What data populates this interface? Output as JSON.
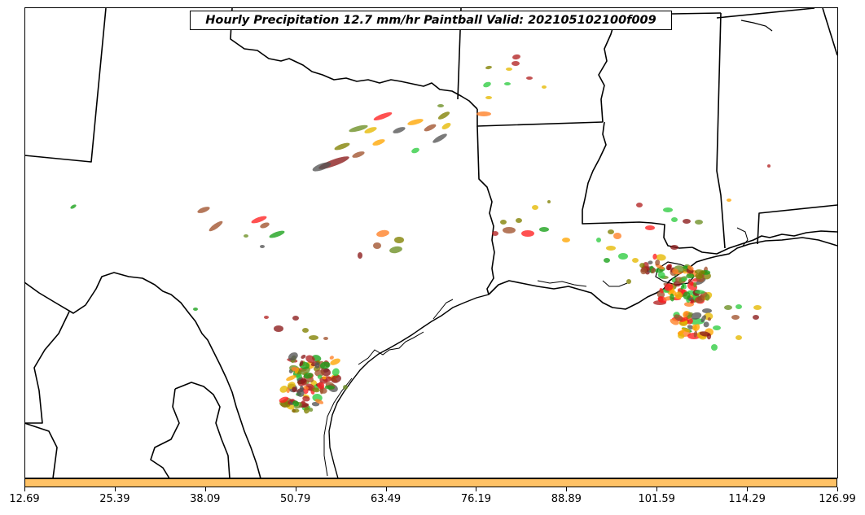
{
  "title": "Hourly Precipitation 12.7 mm/hr Paintball Valid: 202105102100f009",
  "colorbar": {
    "color": "#ffc266",
    "ticks": [
      "12.69",
      "25.39",
      "38.09",
      "50.79",
      "63.49",
      "76.19",
      "88.89",
      "101.59",
      "114.29",
      "126.99"
    ]
  },
  "colors": {
    "member_palette": [
      "#ff2020",
      "#ff7f24",
      "#ffa500",
      "#e6b800",
      "#2ecc40",
      "#18a018",
      "#808000",
      "#8b1a1a",
      "#a0522d",
      "#555555",
      "#b22222",
      "#6b8e23"
    ]
  }
}
